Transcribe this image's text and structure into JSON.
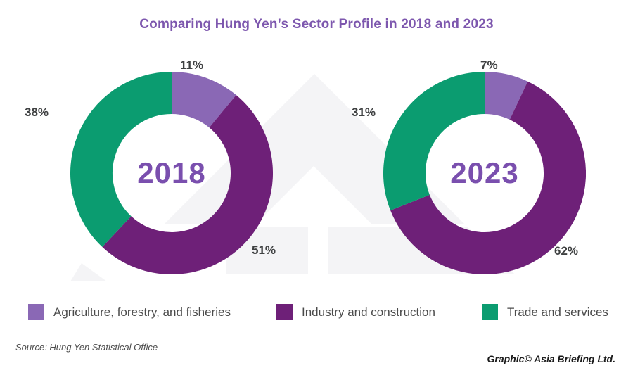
{
  "title": "Comparing Hung Yen’s Sector Profile in 2018 and 2023",
  "chart_data": [
    {
      "type": "pie",
      "subtype": "donut",
      "title": "2018",
      "center_label": "2018",
      "categories": [
        "Agriculture, forestry, and fisheries",
        "Industry and construction",
        "Trade and services"
      ],
      "values": [
        11,
        51,
        38
      ],
      "labels": [
        "11%",
        "51%",
        "38%"
      ],
      "colors": [
        "#8a68b5",
        "#6e2078",
        "#0b9c70"
      ],
      "start_angle_deg": 0,
      "direction": "clockwise",
      "legend_position": "bottom"
    },
    {
      "type": "pie",
      "subtype": "donut",
      "title": "2023",
      "center_label": "2023",
      "categories": [
        "Agriculture, forestry, and fisheries",
        "Industry and construction",
        "Trade and services"
      ],
      "values": [
        7,
        62,
        31
      ],
      "labels": [
        "7%",
        "62%",
        "31%"
      ],
      "colors": [
        "#8a68b5",
        "#6e2078",
        "#0b9c70"
      ],
      "start_angle_deg": 0,
      "direction": "clockwise",
      "legend_position": "bottom"
    }
  ],
  "legend": {
    "items": [
      {
        "label": "Agriculture, forestry, and fisheries",
        "color": "#8a68b5"
      },
      {
        "label": "Industry and construction",
        "color": "#6e2078"
      },
      {
        "label": "Trade and services",
        "color": "#0b9c70"
      }
    ]
  },
  "source": "Source: Hung Yen Statistical Office",
  "credit": "Graphic© Asia Briefing Ltd.",
  "colors": {
    "accent_purple_light": "#8a68b5",
    "accent_purple_dark": "#6e2078",
    "accent_green": "#0b9c70",
    "title_text": "#7d57ae",
    "year_text": "#7a4fae",
    "percent_label_text": "#3f4142",
    "legend_text": "#4b4b4b",
    "watermark": "#f4f4f6"
  }
}
